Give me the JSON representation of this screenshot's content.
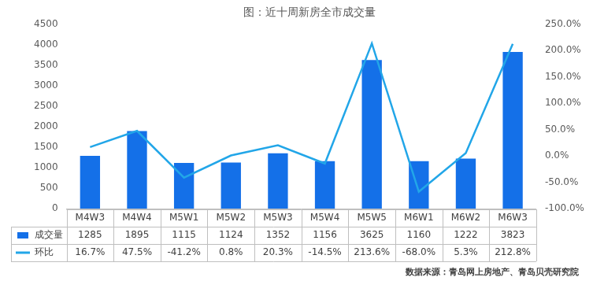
{
  "chart_data": {
    "type": "bar",
    "title": "图：近十周新房全市成交量",
    "categories": [
      "M4W3",
      "M4W4",
      "M5W1",
      "M5W2",
      "M5W3",
      "M5W4",
      "M5W5",
      "M6W1",
      "M6W2",
      "M6W3"
    ],
    "series": [
      {
        "name": "成交量",
        "type": "bar",
        "color": "#1470e8",
        "values": [
          1285,
          1895,
          1115,
          1124,
          1352,
          1156,
          3625,
          1160,
          1222,
          3823
        ]
      },
      {
        "name": "环比",
        "type": "line",
        "color": "#22a6e8",
        "axis": "y2",
        "values": [
          16.7,
          47.5,
          -41.2,
          0.8,
          20.3,
          -14.5,
          213.6,
          -68.0,
          5.3,
          212.8
        ],
        "value_labels": [
          "16.7%",
          "47.5%",
          "-41.2%",
          "0.8%",
          "20.3%",
          "-14.5%",
          "213.6%",
          "-68.0%",
          "5.3%",
          "212.8%"
        ]
      }
    ],
    "ylim": [
      0,
      4500
    ],
    "yticks": [
      0,
      500,
      1000,
      1500,
      2000,
      2500,
      3000,
      3500,
      4000,
      4500
    ],
    "y2lim": [
      -100,
      250
    ],
    "y2ticks": [
      {
        "value": -100,
        "label": "-100.0%"
      },
      {
        "value": -50,
        "label": "-50.0%"
      },
      {
        "value": 0,
        "label": "0.0%"
      },
      {
        "value": 50,
        "label": "50.0%"
      },
      {
        "value": 100,
        "label": "100.0%"
      },
      {
        "value": 150,
        "label": "150.0%"
      },
      {
        "value": 200,
        "label": "200.0%"
      },
      {
        "value": 250,
        "label": "250.0%"
      }
    ],
    "grid": false,
    "data_labels": true,
    "annotations": [
      "数据来源：青岛网上房地产、青岛贝壳研究院"
    ]
  }
}
